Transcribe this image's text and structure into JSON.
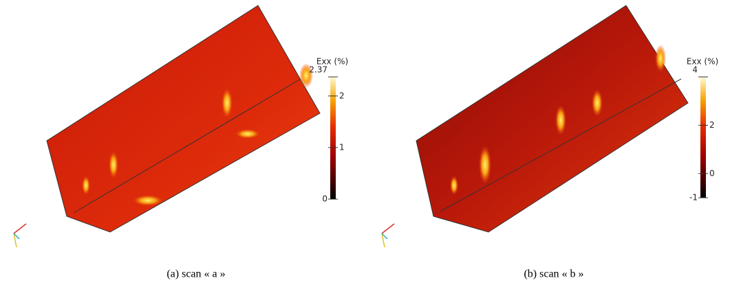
{
  "panels": [
    {
      "caption": "(a)  scan « a »",
      "colorbar": {
        "title": "Exx (%)",
        "range": [
          0,
          2.37
        ],
        "ticks": [
          2.37,
          2,
          1,
          0
        ]
      }
    },
    {
      "caption": "(b)  scan « b »",
      "colorbar": {
        "title": "Exx (%)",
        "range": [
          -1,
          4
        ],
        "ticks": [
          4,
          2,
          0,
          -1
        ]
      }
    }
  ]
}
